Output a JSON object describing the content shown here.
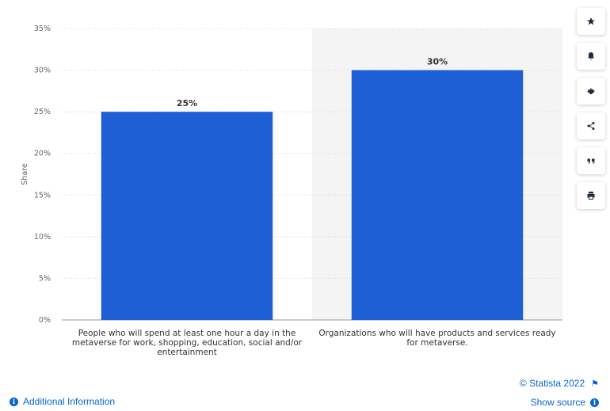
{
  "chart_data": {
    "type": "bar",
    "categories": [
      "People who will spend at least one hour a day in the metaverse for work, shopping, education, social and/or entertainment",
      "Organizations who will have products and services ready for metaverse."
    ],
    "category_lines": [
      [
        "People who will spend at least one hour a day in the",
        "metaverse for work, shopping, education, social and/or",
        "entertainment"
      ],
      [
        "Organizations who will have products and services ready",
        "for metaverse."
      ]
    ],
    "values": [
      25,
      30
    ],
    "data_labels": [
      "25%",
      "30%"
    ],
    "ylabel": "Share",
    "ylim": [
      0,
      35
    ],
    "yticks": [
      0,
      5,
      10,
      15,
      20,
      25,
      30,
      35
    ],
    "ytick_labels": [
      "0%",
      "5%",
      "10%",
      "15%",
      "20%",
      "25%",
      "30%",
      "35%"
    ],
    "grid": true,
    "bar_color": "#1f5fd6",
    "highlighted_category_index": 1
  },
  "toolbar": {
    "items": [
      {
        "name": "favorite-icon"
      },
      {
        "name": "notification-bell-icon"
      },
      {
        "name": "settings-gear-icon"
      },
      {
        "name": "share-icon"
      },
      {
        "name": "cite-quote-icon"
      },
      {
        "name": "print-icon"
      }
    ]
  },
  "footer": {
    "additional_info": "Additional Information",
    "copyright": "© Statista 2022",
    "show_source": "Show source"
  },
  "colors": {
    "accent": "#0766d1",
    "bar": "#1f5fd6",
    "highlight_band": "#f4f4f4",
    "grid": "#d8d8d8"
  }
}
